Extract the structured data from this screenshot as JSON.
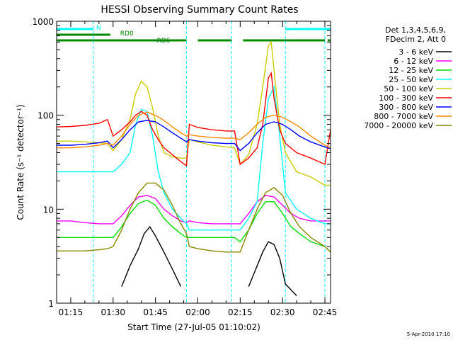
{
  "chart_data": {
    "type": "line",
    "title": "HESSI Observing Summary Count Rates",
    "xlabel": "Start Time (27-Jul-05 01:10:02)",
    "ylabel": "Count Rate (s⁻¹ detector⁻¹)",
    "yscale": "log",
    "ylim": [
      1,
      1000
    ],
    "xlim": [
      "01:10",
      "02:47"
    ],
    "x_ticks": [
      "01:15",
      "01:30",
      "01:45",
      "02:00",
      "02:15",
      "02:30",
      "02:45"
    ],
    "y_ticks": [
      "1",
      "10",
      "100",
      "1000"
    ],
    "grid": false,
    "legend_position": "right",
    "legend_header": [
      "Det 1,3,4,5,6,9,",
      "FDecim 2, Att 0"
    ],
    "footer": "5-Apr-2010 17:10",
    "colors": {
      "3 - 6 keV": "#000000",
      "6 - 12 keV": "#ff00ff",
      "12 - 25 keV": "#00dd00",
      "25 - 50 keV": "#00ffff",
      "50 - 100 keV": "#cccc00",
      "100 - 300 keV": "#ff0000",
      "300 - 800 keV": "#0000ff",
      "800 - 7000 keV": "#ff8800",
      "7000 - 20000 keV": "#888800",
      "flag_N": "#00ffff",
      "flag_RD": "#008800"
    },
    "flags": [
      {
        "name": "N",
        "color": "#00ffff",
        "intervals": [
          [
            "01:10",
            "01:23"
          ],
          [
            "02:31",
            "02:47"
          ]
        ]
      },
      {
        "name": "RD0",
        "color": "#008800",
        "intervals": [
          [
            "01:10",
            "01:29"
          ]
        ]
      },
      {
        "name": "RD6",
        "color": "#008800",
        "intervals": [
          [
            "01:10",
            "01:56"
          ],
          [
            "02:00",
            "02:12"
          ],
          [
            "02:16",
            "02:45"
          ],
          [
            "02:46",
            "02:47"
          ]
        ]
      }
    ],
    "series": [
      {
        "name": "3 - 6 keV",
        "x": [
          "01:10",
          "01:15",
          "01:20",
          "01:25",
          "01:30",
          "01:33",
          "01:36",
          "01:39",
          "01:41",
          "01:43",
          "01:45",
          "01:48",
          "01:51",
          "01:54",
          "01:57",
          "02:00",
          "02:05",
          "02:10",
          "02:15",
          "02:18",
          "02:21",
          "02:23",
          "02:25",
          "02:27",
          "02:29",
          "02:31",
          "02:35",
          "02:40",
          "02:45",
          "02:47"
        ],
        "y": [
          null,
          null,
          null,
          null,
          null,
          1.5,
          2.5,
          3.8,
          5.5,
          6.5,
          5.2,
          3.5,
          2.3,
          1.5,
          null,
          null,
          null,
          null,
          null,
          1.5,
          2.5,
          3.5,
          4.5,
          4.2,
          3.0,
          1.6,
          1.2,
          null,
          null,
          null
        ]
      },
      {
        "name": "6 - 12 keV",
        "x": [
          "01:10",
          "01:15",
          "01:20",
          "01:25",
          "01:28",
          "01:30",
          "01:33",
          "01:36",
          "01:39",
          "01:42",
          "01:45",
          "01:48",
          "01:51",
          "01:54",
          "01:56",
          "01:57",
          "02:00",
          "02:05",
          "02:10",
          "02:13",
          "02:15",
          "02:18",
          "02:21",
          "02:24",
          "02:27",
          "02:30",
          "02:33",
          "02:36",
          "02:40",
          "02:45",
          "02:47"
        ],
        "y": [
          7.5,
          7.5,
          7.2,
          7.0,
          7.0,
          7.0,
          8.5,
          11,
          13.5,
          14,
          13,
          10,
          8.5,
          7.5,
          7.2,
          7.5,
          7.2,
          7.0,
          7.0,
          7.0,
          7.0,
          9,
          12,
          14,
          13.5,
          11,
          9,
          8,
          7.5,
          7.5,
          7.5
        ]
      },
      {
        "name": "12 - 25 keV",
        "x": [
          "01:10",
          "01:15",
          "01:20",
          "01:25",
          "01:30",
          "01:33",
          "01:36",
          "01:39",
          "01:42",
          "01:45",
          "01:48",
          "01:51",
          "01:54",
          "01:56",
          "01:57",
          "02:00",
          "02:05",
          "02:10",
          "02:13",
          "02:15",
          "02:18",
          "02:21",
          "02:24",
          "02:27",
          "02:30",
          "02:33",
          "02:36",
          "02:40",
          "02:45",
          "02:47"
        ],
        "y": [
          5.0,
          5.0,
          5.0,
          5.0,
          5.0,
          6.5,
          9,
          11.5,
          12.5,
          11,
          8,
          6.5,
          5.5,
          5.0,
          5.0,
          5.0,
          5.0,
          5.0,
          5.0,
          4.5,
          6,
          9,
          12,
          12,
          9,
          6.5,
          5.5,
          4.5,
          4.0,
          3.5
        ]
      },
      {
        "name": "25 - 50 keV",
        "x": [
          "01:10",
          "01:15",
          "01:20",
          "01:25",
          "01:28",
          "01:30",
          "01:33",
          "01:36",
          "01:38",
          "01:40",
          "01:42",
          "01:44",
          "01:46",
          "01:48",
          "01:51",
          "01:54",
          "01:56",
          "01:57",
          "02:00",
          "02:05",
          "02:10",
          "02:13",
          "02:15",
          "02:18",
          "02:21",
          "02:23",
          "02:25",
          "02:27",
          "02:29",
          "02:31",
          "02:35",
          "02:40",
          "02:45",
          "02:47"
        ],
        "y": [
          25,
          25,
          25,
          25,
          25,
          25,
          30,
          40,
          80,
          115,
          110,
          60,
          25,
          15,
          10,
          8,
          7,
          6,
          6,
          6,
          6,
          6,
          6,
          8,
          12,
          50,
          150,
          200,
          60,
          15,
          10,
          8,
          7,
          7
        ]
      },
      {
        "name": "50 - 100 keV",
        "x": [
          "01:10",
          "01:15",
          "01:20",
          "01:25",
          "01:28",
          "01:30",
          "01:33",
          "01:36",
          "01:38",
          "01:40",
          "01:42",
          "01:44",
          "01:46",
          "01:48",
          "01:51",
          "01:54",
          "01:56",
          "01:57",
          "02:00",
          "02:05",
          "02:10",
          "02:13",
          "02:15",
          "02:18",
          "02:21",
          "02:23",
          "02:25",
          "02:26",
          "02:27",
          "02:29",
          "02:31",
          "02:35",
          "02:40",
          "02:45",
          "02:47"
        ],
        "y": [
          53,
          53,
          52,
          51,
          50,
          42,
          55,
          90,
          170,
          230,
          200,
          120,
          60,
          40,
          36,
          35,
          35,
          55,
          52,
          48,
          46,
          45,
          30,
          38,
          80,
          200,
          550,
          600,
          300,
          80,
          40,
          25,
          22,
          18,
          18
        ]
      },
      {
        "name": "100 - 300 keV",
        "x": [
          "01:10",
          "01:15",
          "01:20",
          "01:25",
          "01:28",
          "01:30",
          "01:33",
          "01:36",
          "01:38",
          "01:40",
          "01:42",
          "01:44",
          "01:46",
          "01:48",
          "01:51",
          "01:54",
          "01:56",
          "01:57",
          "02:00",
          "02:05",
          "02:10",
          "02:13",
          "02:15",
          "02:18",
          "02:21",
          "02:23",
          "02:25",
          "02:26",
          "02:27",
          "02:29",
          "02:31",
          "02:35",
          "02:40",
          "02:45",
          "02:47"
        ],
        "y": [
          75,
          76,
          78,
          82,
          90,
          60,
          70,
          85,
          100,
          110,
          100,
          70,
          55,
          45,
          38,
          32,
          29,
          80,
          74,
          70,
          68,
          68,
          30,
          35,
          45,
          80,
          250,
          280,
          150,
          70,
          50,
          40,
          35,
          30,
          70
        ]
      },
      {
        "name": "300 - 800 keV",
        "x": [
          "01:10",
          "01:15",
          "01:20",
          "01:25",
          "01:28",
          "01:30",
          "01:33",
          "01:36",
          "01:39",
          "01:42",
          "01:45",
          "01:48",
          "01:51",
          "01:54",
          "01:56",
          "01:57",
          "02:00",
          "02:05",
          "02:10",
          "02:13",
          "02:15",
          "02:18",
          "02:21",
          "02:24",
          "02:27",
          "02:30",
          "02:33",
          "02:36",
          "02:40",
          "02:45",
          "02:47"
        ],
        "y": [
          48,
          48,
          49,
          51,
          53,
          45,
          55,
          70,
          85,
          88,
          85,
          75,
          65,
          57,
          52,
          55,
          53,
          51,
          50,
          50,
          42,
          50,
          65,
          80,
          85,
          80,
          70,
          60,
          52,
          46,
          44
        ]
      },
      {
        "name": "800 - 7000 keV",
        "x": [
          "01:10",
          "01:15",
          "01:20",
          "01:25",
          "01:28",
          "01:30",
          "01:33",
          "01:36",
          "01:39",
          "01:42",
          "01:45",
          "01:48",
          "01:51",
          "01:54",
          "01:56",
          "01:57",
          "02:00",
          "02:05",
          "02:10",
          "02:13",
          "02:15",
          "02:18",
          "02:21",
          "02:24",
          "02:27",
          "02:30",
          "02:33",
          "02:36",
          "02:40",
          "02:45",
          "02:47"
        ],
        "y": [
          45,
          45,
          46,
          48,
          50,
          48,
          60,
          80,
          100,
          108,
          100,
          88,
          75,
          65,
          60,
          62,
          60,
          58,
          57,
          57,
          55,
          65,
          80,
          95,
          100,
          95,
          85,
          75,
          60,
          48,
          45
        ]
      },
      {
        "name": "7000 - 20000 keV",
        "x": [
          "01:10",
          "01:15",
          "01:20",
          "01:25",
          "01:28",
          "01:30",
          "01:33",
          "01:36",
          "01:39",
          "01:42",
          "01:45",
          "01:48",
          "01:51",
          "01:54",
          "01:56",
          "01:57",
          "02:00",
          "02:05",
          "02:10",
          "02:13",
          "02:15",
          "02:18",
          "02:21",
          "02:24",
          "02:27",
          "02:30",
          "02:33",
          "02:36",
          "02:40",
          "02:45",
          "02:47"
        ],
        "y": [
          3.6,
          3.6,
          3.6,
          3.7,
          3.8,
          4.0,
          6,
          10,
          15,
          19,
          19,
          16,
          11,
          7,
          5.5,
          4.0,
          3.8,
          3.6,
          3.5,
          3.5,
          3.5,
          6,
          10,
          15,
          17,
          14,
          9,
          6.5,
          5,
          4,
          3.5
        ]
      }
    ]
  }
}
